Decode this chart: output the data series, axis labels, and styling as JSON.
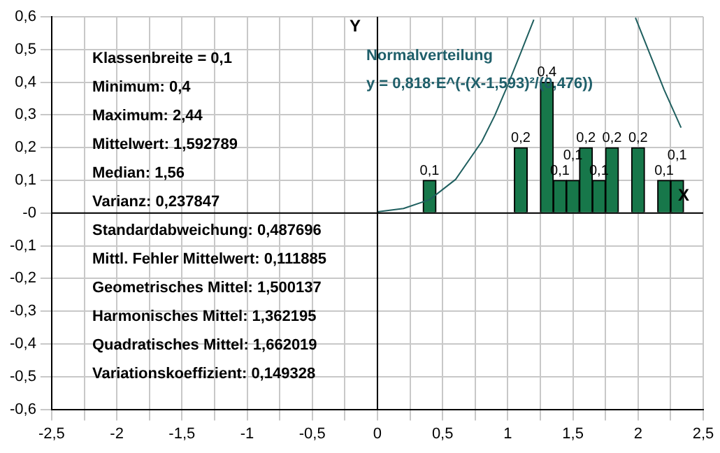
{
  "chart_data": {
    "type": "bar",
    "x": [
      0.4,
      1.1,
      1.3,
      1.4,
      1.5,
      1.6,
      1.7,
      1.8,
      2.0,
      2.2,
      2.3
    ],
    "series": [
      {
        "color": "#17774a",
        "values": [
          0.1,
          0.2,
          0.4,
          0.1,
          0.1,
          0.2,
          0.1,
          0.2,
          0.2,
          0.1,
          0.1
        ],
        "value_labels": [
          "0,1",
          "0,2",
          "0,4",
          "0,1",
          "0,1",
          "0,2",
          "0,1",
          "0,2",
          "0,2",
          "0,1",
          "0,1"
        ]
      },
      {
        "type": "line",
        "color": "#1f5f5f",
        "x": [
          0,
          0.2,
          0.4,
          0.6,
          0.8,
          0.9,
          1.0,
          1.1,
          1.2,
          1.6,
          1.98,
          2.1,
          2.2,
          2.33
        ],
        "values": [
          0.004,
          0.014,
          0.041,
          0.103,
          0.218,
          0.298,
          0.391,
          0.49,
          0.591,
          null,
          0.597,
          0.477,
          0.377,
          0.261
        ]
      }
    ],
    "xlabel": "X",
    "ylabel": "Y",
    "xlim": [
      -2.5,
      2.5
    ],
    "xticks": [
      {
        "value": -2.5,
        "label": "-2,5"
      },
      {
        "value": -2.25,
        "label": null
      },
      -2,
      {
        "value": -1.75,
        "label": null
      },
      {
        "value": -1.5,
        "label": "-1,5"
      },
      {
        "value": -1.25,
        "label": null
      },
      -1,
      {
        "value": -0.75,
        "label": null
      },
      {
        "value": -0.5,
        "label": "-0,5"
      },
      {
        "value": -0.25,
        "label": null
      },
      0,
      {
        "value": 0.25,
        "label": null
      },
      {
        "value": 0.5,
        "label": "0,5"
      },
      {
        "value": 0.75,
        "label": null
      },
      1,
      {
        "value": 1.25,
        "label": null
      },
      {
        "value": 1.5,
        "label": "1,5"
      },
      {
        "value": 1.75,
        "label": null
      },
      2,
      {
        "value": 2.25,
        "label": null
      },
      {
        "value": 2.5,
        "label": "2,5"
      }
    ],
    "ylim": [
      -0.6,
      0.6
    ],
    "yticks": [
      {
        "value": -0.6,
        "label": "-0,6"
      },
      {
        "value": -0.5,
        "label": "-0,5"
      },
      {
        "value": -0.4,
        "label": "-0,4"
      },
      {
        "value": -0.3,
        "label": "-0,3"
      },
      {
        "value": -0.2,
        "label": "-0,2"
      },
      {
        "value": -0.1,
        "label": "-0,1"
      },
      {
        "value": 0,
        "label": "-0"
      },
      {
        "value": 0.1,
        "label": "0,1"
      },
      {
        "value": 0.2,
        "label": "0,2"
      },
      {
        "value": 0.3,
        "label": "0,3"
      },
      {
        "value": 0.4,
        "label": "0,4"
      },
      {
        "value": 0.5,
        "label": "0,5"
      },
      {
        "value": 0.6,
        "label": "0,6"
      }
    ],
    "grid": true,
    "legend": false,
    "marker": "none",
    "line_style": "solid",
    "annotations": [
      "Klassenbreite = 0,1",
      "Minimum: 0,4",
      "Maximum: 2,44",
      "Mittelwert: 1,592789",
      "Median: 1,56",
      "Varianz: 0,237847",
      "Standardabweichung: 0,487696",
      "Mittl. Fehler Mittelwert: 0,111885",
      "Geometrisches Mittel: 1,500137",
      "Harmonisches Mittel: 1,362195",
      "Quadratisches Mittel: 1,662019",
      "Variationskoeffizient: 0,149328",
      "Normalverteilung",
      "y = 0,818·E^(-(X-1,593)²/(0,476))"
    ]
  }
}
